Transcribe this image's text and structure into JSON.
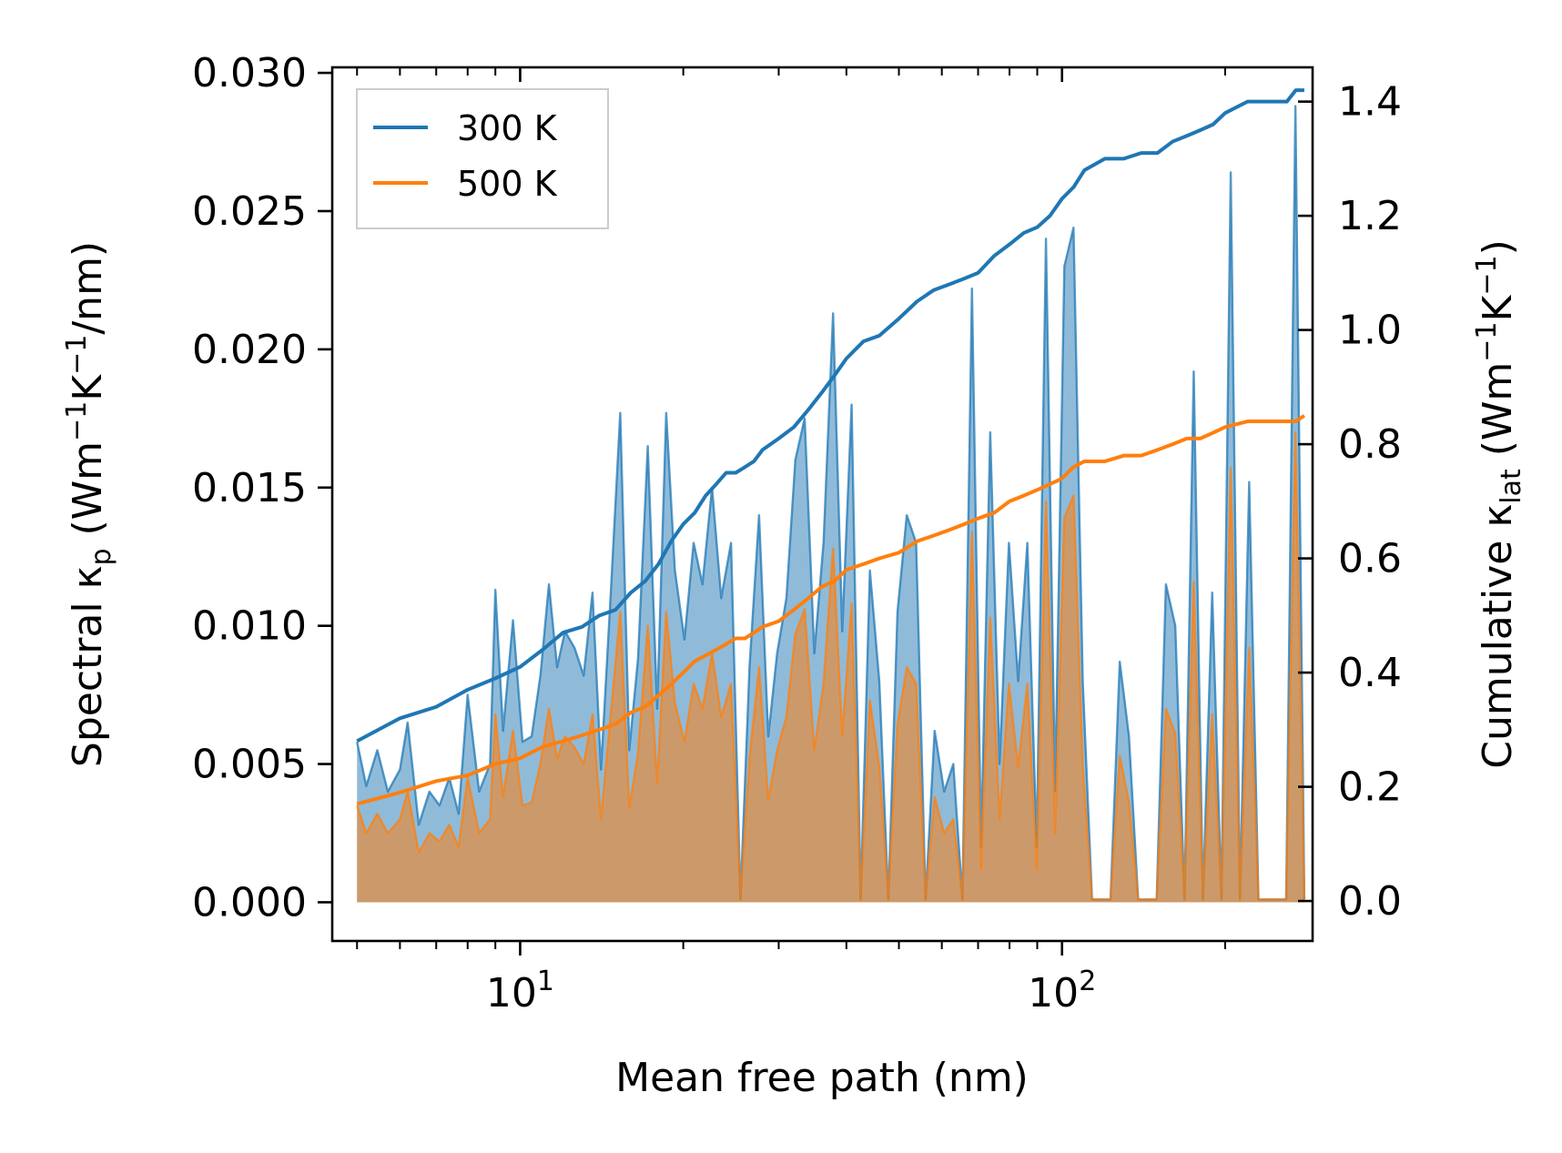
{
  "chart_data": {
    "type": "area",
    "title": "",
    "xlabel": "Mean free path (nm)",
    "ylabel_left_main": "Spectral κ",
    "ylabel_left_sub": "p",
    "ylabel_left_units_open": " (Wm",
    "ylabel_left_sup1": "−1",
    "ylabel_left_units_mid": "K",
    "ylabel_left_sup2": "−1",
    "ylabel_left_units_close": "/nm)",
    "ylabel_right_main": "Cumulative κ",
    "ylabel_right_sub": "lat",
    "ylabel_right_units_open": " (Wm",
    "ylabel_right_sup1": "−1",
    "ylabel_right_units_mid": "K",
    "ylabel_right_sup2": "−1",
    "ylabel_right_units_close": ")",
    "x_scale": "log",
    "xlim": [
      4.5,
      290
    ],
    "ylim_left": [
      -0.0014,
      0.0302
    ],
    "ylim_right": [
      -0.07,
      1.46
    ],
    "x_tick_labels": [
      {
        "base": "10",
        "exp": "1",
        "value": 10
      },
      {
        "base": "10",
        "exp": "2",
        "value": 100
      }
    ],
    "left_ticks": [
      0.0,
      0.005,
      0.01,
      0.015,
      0.02,
      0.025,
      0.03
    ],
    "left_tick_labels": [
      "0.000",
      "0.005",
      "0.010",
      "0.015",
      "0.020",
      "0.025",
      "0.030"
    ],
    "right_ticks": [
      0.0,
      0.2,
      0.4,
      0.6,
      0.8,
      1.0,
      1.2,
      1.4
    ],
    "right_tick_labels": [
      "0.0",
      "0.2",
      "0.4",
      "0.6",
      "0.8",
      "1.0",
      "1.2",
      "1.4"
    ],
    "legend_position": "top-left",
    "series": [
      {
        "name": "300 K",
        "color": "#1f77b4",
        "fill_color": "#1f77b4",
        "spectral_x": [
          5.0,
          5.2,
          5.45,
          5.7,
          6.0,
          6.2,
          6.5,
          6.8,
          7.1,
          7.4,
          7.7,
          8.0,
          8.4,
          8.8,
          9.0,
          9.3,
          9.7,
          10.1,
          10.5,
          10.9,
          11.3,
          11.7,
          12.1,
          12.6,
          13.1,
          13.6,
          14.1,
          14.7,
          15.3,
          15.9,
          16.5,
          17.2,
          17.9,
          18.6,
          19.3,
          20.1,
          20.9,
          21.7,
          22.6,
          23.5,
          24.5,
          25.5,
          26.5,
          27.6,
          28.7,
          29.8,
          31.0,
          32.2,
          33.5,
          34.9,
          36.3,
          37.8,
          39.3,
          40.9,
          42.5,
          44.2,
          46.0,
          47.8,
          49.7,
          51.7,
          53.8,
          56.0,
          58.2,
          60.6,
          63.0,
          65.5,
          68.2,
          70.9,
          73.7,
          76.7,
          79.8,
          83.0,
          86.3,
          89.8,
          93.4,
          97.1,
          101.0,
          105.0,
          109.2,
          113.6,
          118.2,
          122.9,
          127.8,
          132.9,
          138.2,
          143.8,
          149.5,
          155.5,
          161.8,
          168.3,
          175.0,
          182.0,
          189.3,
          196.9,
          204.8,
          213.0,
          221.5,
          230.4,
          239.6,
          249.2,
          259.2,
          269.6,
          280.0
        ],
        "spectral_y": [
          0.0058,
          0.0042,
          0.0055,
          0.004,
          0.0048,
          0.0065,
          0.0028,
          0.004,
          0.0035,
          0.0045,
          0.0032,
          0.0075,
          0.004,
          0.005,
          0.0113,
          0.0062,
          0.0102,
          0.0058,
          0.006,
          0.0082,
          0.0115,
          0.0085,
          0.0098,
          0.0092,
          0.0082,
          0.0112,
          0.0048,
          0.0112,
          0.0177,
          0.0055,
          0.0088,
          0.0165,
          0.007,
          0.0177,
          0.012,
          0.0095,
          0.013,
          0.0115,
          0.015,
          0.011,
          0.013,
          0.0001,
          0.0085,
          0.014,
          0.006,
          0.009,
          0.011,
          0.016,
          0.0175,
          0.009,
          0.013,
          0.0213,
          0.0098,
          0.018,
          0.0001,
          0.012,
          0.008,
          0.0001,
          0.0105,
          0.014,
          0.013,
          0.0001,
          0.0062,
          0.004,
          0.005,
          0.0001,
          0.0222,
          0.002,
          0.017,
          0.005,
          0.013,
          0.008,
          0.013,
          0.002,
          0.024,
          0.004,
          0.023,
          0.0244,
          0.008,
          0.0001,
          0.0001,
          0.0001,
          0.0087,
          0.006,
          0.0001,
          0.0001,
          0.0001,
          0.0115,
          0.01,
          0.0001,
          0.0192,
          0.0001,
          0.0112,
          0.0001,
          0.0264,
          0.0001,
          0.0152,
          0.0001,
          0.0001,
          0.0001,
          0.0001,
          0.0288,
          0.0001
        ],
        "cumulative_x": [
          5.0,
          6.0,
          7.0,
          8.0,
          9.0,
          10.0,
          11.0,
          12.0,
          13.0,
          14.0,
          15.0,
          16.0,
          17.0,
          18.0,
          19.0,
          20.0,
          21.0,
          22.0,
          23.0,
          24.0,
          25.0,
          26.0,
          27.0,
          28.0,
          30.0,
          32.0,
          34.0,
          36.0,
          38.0,
          40.0,
          43.0,
          46.0,
          50.0,
          54.0,
          58.0,
          62.0,
          66.0,
          70.0,
          75.0,
          80.0,
          85.0,
          90.0,
          95.0,
          100.0,
          105.0,
          110.0,
          120.0,
          130.0,
          140.0,
          150.0,
          160.0,
          170.0,
          180.0,
          190.0,
          200.0,
          220.0,
          240.0,
          260.0,
          270.0,
          280.0
        ],
        "cumulative_y": [
          0.28,
          0.32,
          0.34,
          0.37,
          0.39,
          0.41,
          0.44,
          0.47,
          0.48,
          0.5,
          0.51,
          0.54,
          0.56,
          0.59,
          0.63,
          0.66,
          0.68,
          0.71,
          0.73,
          0.75,
          0.75,
          0.76,
          0.77,
          0.79,
          0.81,
          0.83,
          0.86,
          0.89,
          0.92,
          0.95,
          0.98,
          0.99,
          1.02,
          1.05,
          1.07,
          1.08,
          1.09,
          1.1,
          1.13,
          1.15,
          1.17,
          1.18,
          1.2,
          1.23,
          1.25,
          1.28,
          1.3,
          1.3,
          1.31,
          1.31,
          1.33,
          1.34,
          1.35,
          1.36,
          1.38,
          1.4,
          1.4,
          1.4,
          1.42,
          1.42
        ]
      },
      {
        "name": "500 K",
        "color": "#ff7f0e",
        "fill_color": "#ff7f0e",
        "spectral_x": [
          5.0,
          5.2,
          5.45,
          5.7,
          6.0,
          6.2,
          6.5,
          6.8,
          7.1,
          7.4,
          7.7,
          8.0,
          8.4,
          8.8,
          9.0,
          9.3,
          9.7,
          10.1,
          10.5,
          10.9,
          11.3,
          11.7,
          12.1,
          12.6,
          13.1,
          13.6,
          14.1,
          14.7,
          15.3,
          15.9,
          16.5,
          17.2,
          17.9,
          18.6,
          19.3,
          20.1,
          20.9,
          21.7,
          22.6,
          23.5,
          24.5,
          25.5,
          26.5,
          27.6,
          28.7,
          29.8,
          31.0,
          32.2,
          33.5,
          34.9,
          36.3,
          37.8,
          39.3,
          40.9,
          42.5,
          44.2,
          46.0,
          47.8,
          49.7,
          51.7,
          53.8,
          56.0,
          58.2,
          60.6,
          63.0,
          65.5,
          68.2,
          70.9,
          73.7,
          76.7,
          79.8,
          83.0,
          86.3,
          89.8,
          93.4,
          97.1,
          101.0,
          105.0,
          109.2,
          113.6,
          118.2,
          122.9,
          127.8,
          132.9,
          138.2,
          143.8,
          149.5,
          155.5,
          161.8,
          168.3,
          175.0,
          182.0,
          189.3,
          196.9,
          204.8,
          213.0,
          221.5,
          230.4,
          239.6,
          249.2,
          259.2,
          269.6,
          280.0
        ],
        "spectral_y": [
          0.0035,
          0.0025,
          0.0032,
          0.0025,
          0.003,
          0.004,
          0.0018,
          0.0025,
          0.0022,
          0.0028,
          0.002,
          0.0045,
          0.0025,
          0.003,
          0.0068,
          0.0038,
          0.0062,
          0.0035,
          0.0036,
          0.005,
          0.007,
          0.0052,
          0.006,
          0.0056,
          0.005,
          0.0068,
          0.003,
          0.0068,
          0.0105,
          0.0034,
          0.0054,
          0.01,
          0.0043,
          0.0105,
          0.0072,
          0.0058,
          0.0079,
          0.007,
          0.009,
          0.0067,
          0.0079,
          0.0001,
          0.0052,
          0.0085,
          0.0037,
          0.0055,
          0.0067,
          0.0097,
          0.0106,
          0.0055,
          0.0079,
          0.0128,
          0.006,
          0.0108,
          0.0001,
          0.0073,
          0.0049,
          0.0001,
          0.0064,
          0.0085,
          0.0079,
          0.0001,
          0.0038,
          0.0025,
          0.003,
          0.0001,
          0.0134,
          0.0012,
          0.0103,
          0.003,
          0.0079,
          0.0049,
          0.0079,
          0.0012,
          0.0145,
          0.0025,
          0.0139,
          0.0147,
          0.0049,
          0.0001,
          0.0001,
          0.0001,
          0.0053,
          0.0036,
          0.0001,
          0.0001,
          0.0001,
          0.007,
          0.0061,
          0.0001,
          0.0116,
          0.0001,
          0.0068,
          0.0001,
          0.0157,
          0.0001,
          0.0092,
          0.0001,
          0.0001,
          0.0001,
          0.0001,
          0.017,
          0.0001
        ],
        "cumulative_x": [
          5.0,
          6.0,
          7.0,
          8.0,
          9.0,
          10.0,
          11.0,
          12.0,
          13.0,
          14.0,
          15.0,
          16.0,
          17.0,
          18.0,
          19.0,
          20.0,
          21.0,
          22.0,
          23.0,
          24.0,
          25.0,
          26.0,
          27.0,
          28.0,
          30.0,
          32.0,
          34.0,
          36.0,
          38.0,
          40.0,
          43.0,
          46.0,
          50.0,
          54.0,
          58.0,
          62.0,
          66.0,
          70.0,
          75.0,
          80.0,
          85.0,
          90.0,
          95.0,
          100.0,
          105.0,
          110.0,
          120.0,
          130.0,
          140.0,
          150.0,
          160.0,
          170.0,
          180.0,
          190.0,
          200.0,
          220.0,
          240.0,
          260.0,
          270.0,
          280.0
        ],
        "cumulative_y": [
          0.17,
          0.19,
          0.21,
          0.22,
          0.24,
          0.25,
          0.27,
          0.28,
          0.29,
          0.3,
          0.31,
          0.33,
          0.34,
          0.36,
          0.38,
          0.4,
          0.42,
          0.43,
          0.44,
          0.45,
          0.46,
          0.46,
          0.47,
          0.48,
          0.49,
          0.51,
          0.53,
          0.55,
          0.56,
          0.58,
          0.59,
          0.6,
          0.61,
          0.63,
          0.64,
          0.65,
          0.66,
          0.67,
          0.68,
          0.7,
          0.71,
          0.72,
          0.73,
          0.74,
          0.76,
          0.77,
          0.77,
          0.78,
          0.78,
          0.79,
          0.8,
          0.81,
          0.81,
          0.82,
          0.83,
          0.84,
          0.84,
          0.84,
          0.84,
          0.85
        ]
      }
    ]
  }
}
